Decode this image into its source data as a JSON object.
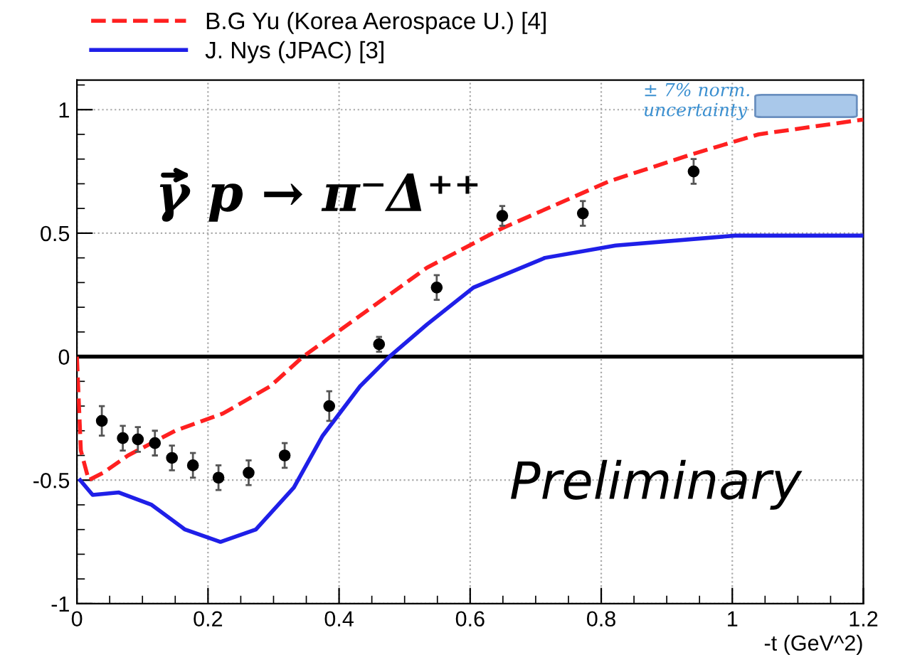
{
  "chart_data": {
    "type": "line",
    "xlabel": "-t (GeV^2)",
    "xlim": [
      0,
      1.2
    ],
    "ylim": [
      -1,
      1.12
    ],
    "xticks": [
      0,
      0.2,
      0.4,
      0.6,
      0.8,
      1,
      1.2
    ],
    "yticks": [
      -1,
      -0.5,
      0,
      0.5,
      1
    ],
    "grid": true,
    "legend": "top",
    "series": [
      {
        "name": "B.G Yu (Korea Aerospace U.) [4]",
        "line_style": "dashed",
        "color": "#ff2020",
        "x": [
          0,
          0.006,
          0.018,
          0.04,
          0.078,
          0.15,
          0.223,
          0.295,
          0.345,
          0.45,
          0.534,
          0.649,
          0.812,
          0.939,
          1.04,
          1.2
        ],
        "values": [
          0,
          -0.38,
          -0.5,
          -0.47,
          -0.4,
          -0.3,
          -0.23,
          -0.12,
          0,
          0.2,
          0.36,
          0.52,
          0.71,
          0.82,
          0.9,
          0.96
        ]
      },
      {
        "name": "J. Nys (JPAC) [3]",
        "line_style": "solid",
        "color": "#1f1fe8",
        "x": [
          0.005,
          0.024,
          0.064,
          0.114,
          0.165,
          0.219,
          0.273,
          0.331,
          0.375,
          0.432,
          0.479,
          0.534,
          0.605,
          0.714,
          0.822,
          1.004,
          1.2
        ],
        "values": [
          -0.5,
          -0.56,
          -0.55,
          -0.6,
          -0.7,
          -0.75,
          -0.7,
          -0.53,
          -0.32,
          -0.12,
          0.005,
          0.13,
          0.28,
          0.4,
          0.45,
          0.49,
          0.49
        ]
      },
      {
        "type": "scatter",
        "marker": "circle",
        "color": "#000000",
        "x": [
          0.038,
          0.07,
          0.093,
          0.119,
          0.145,
          0.177,
          0.216,
          0.262,
          0.317,
          0.385,
          0.461,
          0.549,
          0.649,
          0.772,
          0.941
        ],
        "values": [
          -0.26,
          -0.33,
          -0.335,
          -0.35,
          -0.41,
          -0.44,
          -0.49,
          -0.47,
          -0.4,
          -0.2,
          0.05,
          0.28,
          0.57,
          0.58,
          0.75
        ],
        "errors": [
          0.06,
          0.05,
          0.05,
          0.05,
          0.05,
          0.05,
          0.05,
          0.05,
          0.05,
          0.06,
          0.03,
          0.05,
          0.04,
          0.05,
          0.05
        ]
      }
    ],
    "ref_lines": [
      {
        "axis": "y",
        "value": 0,
        "color": "#000000",
        "line_style": "solid"
      }
    ],
    "annotations": [
      "γ p → π⁻Δ⁺⁺",
      "Preliminary",
      "± 7% norm. uncertainty"
    ]
  }
}
